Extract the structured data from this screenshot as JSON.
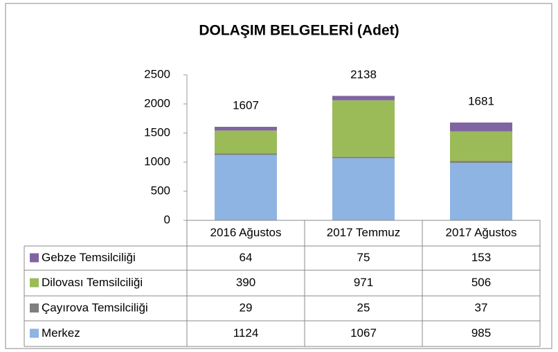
{
  "chart_data": {
    "type": "stacked_bar",
    "title": "DOLAŞIM BELGELERİ (Adet)",
    "categories": [
      "2016 Ağustos",
      "2017 Temmuz",
      "2017 Ağustos"
    ],
    "series": [
      {
        "name": "Merkez",
        "color": "#8eb4e3",
        "values": [
          1124,
          1067,
          985
        ]
      },
      {
        "name": "Çayırova Temsilciliği",
        "color": "#7f7f7f",
        "values": [
          29,
          25,
          37
        ]
      },
      {
        "name": "Dilovası Temsilciliği",
        "color": "#9bbb59",
        "values": [
          390,
          971,
          506
        ]
      },
      {
        "name": "Gebze Temsilciliği",
        "color": "#8064a2",
        "values": [
          64,
          75,
          153
        ]
      }
    ],
    "totals": [
      1607,
      2138,
      1681
    ],
    "ylim": [
      0,
      2500
    ],
    "yticks": [
      0,
      500,
      1000,
      1500,
      2000,
      2500
    ],
    "grid": false,
    "data_table": true
  }
}
